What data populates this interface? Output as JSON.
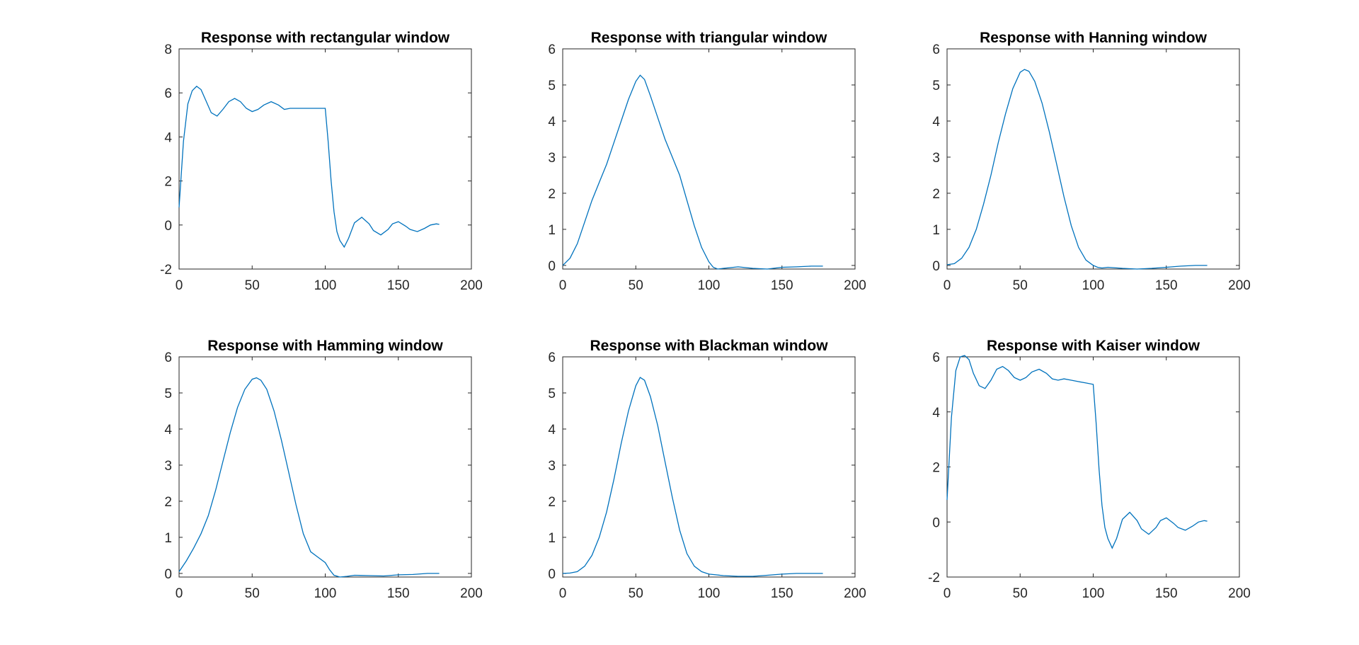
{
  "chart_data": [
    {
      "type": "line",
      "title": "Response with rectangular window",
      "xlim": [
        0,
        200
      ],
      "ylim": [
        -2,
        8
      ],
      "xticks": [
        0,
        50,
        100,
        150,
        200
      ],
      "xtick_labels": [
        "0",
        "50",
        "100",
        "150",
        "200"
      ],
      "yticks": [
        -2,
        0,
        2,
        4,
        6,
        8
      ],
      "ytick_labels": [
        "-2",
        "0",
        "2",
        "4",
        "6",
        "8"
      ],
      "grid": false,
      "series": [
        {
          "color": "#0072BD",
          "x": [
            0,
            3,
            6,
            9,
            12,
            15,
            18,
            22,
            26,
            30,
            34,
            38,
            42,
            46,
            50,
            54,
            58,
            63,
            68,
            72,
            76,
            80,
            85,
            90,
            95,
            100,
            102,
            104,
            106,
            108,
            110,
            113,
            116,
            120,
            125,
            130,
            133,
            138,
            143,
            146,
            150,
            155,
            158,
            163,
            168,
            172,
            176,
            178
          ],
          "y": [
            0.8,
            3.8,
            5.5,
            6.1,
            6.3,
            6.15,
            5.7,
            5.1,
            4.95,
            5.25,
            5.6,
            5.75,
            5.6,
            5.3,
            5.15,
            5.25,
            5.45,
            5.6,
            5.45,
            5.25,
            5.3,
            5.3,
            5.3,
            5.3,
            5.3,
            5.3,
            3.8,
            2.0,
            0.6,
            -0.3,
            -0.7,
            -1.0,
            -0.6,
            0.1,
            0.35,
            0.05,
            -0.25,
            -0.45,
            -0.2,
            0.05,
            0.15,
            -0.05,
            -0.2,
            -0.3,
            -0.15,
            0.0,
            0.05,
            0.03
          ]
        }
      ]
    },
    {
      "type": "line",
      "title": "Response with triangular window",
      "xlim": [
        0,
        200
      ],
      "ylim": [
        -0.1,
        6
      ],
      "xticks": [
        0,
        50,
        100,
        150,
        200
      ],
      "xtick_labels": [
        "0",
        "50",
        "100",
        "150",
        "200"
      ],
      "yticks": [
        0,
        1,
        2,
        3,
        4,
        5,
        6
      ],
      "ytick_labels": [
        "0",
        "1",
        "2",
        "3",
        "4",
        "5",
        "6"
      ],
      "grid": false,
      "series": [
        {
          "color": "#0072BD",
          "x": [
            0,
            5,
            10,
            15,
            20,
            25,
            30,
            35,
            40,
            45,
            50,
            53,
            56,
            60,
            65,
            70,
            75,
            80,
            85,
            90,
            95,
            100,
            103,
            106,
            110,
            120,
            130,
            140,
            150,
            160,
            170,
            178
          ],
          "y": [
            0.0,
            0.2,
            0.6,
            1.2,
            1.8,
            2.3,
            2.8,
            3.4,
            4.0,
            4.6,
            5.1,
            5.27,
            5.15,
            4.7,
            4.1,
            3.5,
            3.0,
            2.5,
            1.8,
            1.1,
            0.5,
            0.1,
            -0.05,
            -0.1,
            -0.08,
            -0.04,
            -0.08,
            -0.1,
            -0.05,
            -0.04,
            -0.02,
            -0.02
          ]
        }
      ]
    },
    {
      "type": "line",
      "title": "Response with Hanning window",
      "xlim": [
        0,
        200
      ],
      "ylim": [
        -0.1,
        6
      ],
      "xticks": [
        0,
        50,
        100,
        150,
        200
      ],
      "xtick_labels": [
        "0",
        "50",
        "100",
        "150",
        "200"
      ],
      "yticks": [
        0,
        1,
        2,
        3,
        4,
        5,
        6
      ],
      "ytick_labels": [
        "0",
        "1",
        "2",
        "3",
        "4",
        "5",
        "6"
      ],
      "grid": false,
      "series": [
        {
          "color": "#0072BD",
          "x": [
            0,
            5,
            10,
            15,
            20,
            25,
            30,
            35,
            40,
            45,
            50,
            53,
            56,
            60,
            65,
            70,
            75,
            80,
            85,
            90,
            95,
            100,
            103,
            106,
            110,
            120,
            130,
            140,
            150,
            160,
            170,
            178
          ],
          "y": [
            0.02,
            0.05,
            0.2,
            0.5,
            1.0,
            1.7,
            2.5,
            3.4,
            4.2,
            4.9,
            5.35,
            5.43,
            5.38,
            5.1,
            4.5,
            3.7,
            2.8,
            1.9,
            1.1,
            0.5,
            0.15,
            0.0,
            -0.05,
            -0.07,
            -0.05,
            -0.08,
            -0.1,
            -0.08,
            -0.05,
            -0.02,
            0.0,
            0.0
          ]
        }
      ]
    },
    {
      "type": "line",
      "title": "Response with Hamming window",
      "xlim": [
        0,
        200
      ],
      "ylim": [
        -0.1,
        6
      ],
      "xticks": [
        0,
        50,
        100,
        150,
        200
      ],
      "xtick_labels": [
        "0",
        "50",
        "100",
        "150",
        "200"
      ],
      "yticks": [
        0,
        1,
        2,
        3,
        4,
        5,
        6
      ],
      "ytick_labels": [
        "0",
        "1",
        "2",
        "3",
        "4",
        "5",
        "6"
      ],
      "grid": false,
      "series": [
        {
          "color": "#0072BD",
          "x": [
            0,
            5,
            10,
            15,
            20,
            25,
            30,
            35,
            40,
            45,
            50,
            53,
            56,
            60,
            65,
            70,
            75,
            80,
            85,
            90,
            95,
            100,
            103,
            106,
            110,
            115,
            120,
            130,
            140,
            150,
            160,
            170,
            178
          ],
          "y": [
            0.05,
            0.35,
            0.7,
            1.1,
            1.6,
            2.3,
            3.1,
            3.9,
            4.6,
            5.1,
            5.38,
            5.42,
            5.35,
            5.1,
            4.5,
            3.7,
            2.8,
            1.9,
            1.1,
            0.6,
            0.45,
            0.3,
            0.1,
            -0.05,
            -0.1,
            -0.08,
            -0.05,
            -0.06,
            -0.07,
            -0.04,
            -0.03,
            0.0,
            0.0
          ]
        }
      ]
    },
    {
      "type": "line",
      "title": "Response with Blackman window",
      "xlim": [
        0,
        200
      ],
      "ylim": [
        -0.1,
        6
      ],
      "xticks": [
        0,
        50,
        100,
        150,
        200
      ],
      "xtick_labels": [
        "0",
        "50",
        "100",
        "150",
        "200"
      ],
      "yticks": [
        0,
        1,
        2,
        3,
        4,
        5,
        6
      ],
      "ytick_labels": [
        "0",
        "1",
        "2",
        "3",
        "4",
        "5",
        "6"
      ],
      "grid": false,
      "series": [
        {
          "color": "#0072BD",
          "x": [
            0,
            5,
            10,
            15,
            20,
            25,
            30,
            35,
            40,
            45,
            50,
            53,
            56,
            60,
            65,
            70,
            75,
            80,
            85,
            90,
            95,
            100,
            105,
            110,
            120,
            130,
            140,
            150,
            160,
            170,
            178
          ],
          "y": [
            0.0,
            0.01,
            0.05,
            0.2,
            0.5,
            1.0,
            1.7,
            2.6,
            3.6,
            4.5,
            5.2,
            5.43,
            5.35,
            4.9,
            4.1,
            3.1,
            2.1,
            1.2,
            0.55,
            0.2,
            0.05,
            -0.02,
            -0.04,
            -0.06,
            -0.08,
            -0.08,
            -0.05,
            -0.02,
            0.0,
            0.0,
            0.0
          ]
        }
      ]
    },
    {
      "type": "line",
      "title": "Response with Kaiser window",
      "xlim": [
        0,
        200
      ],
      "ylim": [
        -2,
        6
      ],
      "xticks": [
        0,
        50,
        100,
        150,
        200
      ],
      "xtick_labels": [
        "0",
        "50",
        "100",
        "150",
        "200"
      ],
      "yticks": [
        -2,
        0,
        2,
        4,
        6
      ],
      "ytick_labels": [
        "-2",
        "0",
        "2",
        "4",
        "6"
      ],
      "grid": false,
      "series": [
        {
          "color": "#0072BD",
          "x": [
            0,
            3,
            6,
            9,
            12,
            15,
            18,
            22,
            26,
            30,
            34,
            38,
            42,
            46,
            50,
            54,
            58,
            63,
            68,
            72,
            76,
            80,
            85,
            90,
            95,
            100,
            102,
            104,
            106,
            108,
            110,
            113,
            116,
            120,
            125,
            130,
            133,
            138,
            143,
            146,
            150,
            155,
            158,
            163,
            168,
            172,
            176,
            178
          ],
          "y": [
            0.8,
            3.8,
            5.5,
            6.0,
            6.05,
            5.9,
            5.4,
            4.95,
            4.85,
            5.15,
            5.55,
            5.65,
            5.5,
            5.25,
            5.15,
            5.25,
            5.45,
            5.55,
            5.4,
            5.2,
            5.15,
            5.2,
            5.15,
            5.1,
            5.05,
            5.0,
            3.6,
            1.9,
            0.6,
            -0.2,
            -0.6,
            -0.95,
            -0.6,
            0.1,
            0.35,
            0.05,
            -0.25,
            -0.45,
            -0.2,
            0.05,
            0.15,
            -0.05,
            -0.2,
            -0.3,
            -0.15,
            0.0,
            0.05,
            0.03
          ]
        }
      ]
    }
  ]
}
